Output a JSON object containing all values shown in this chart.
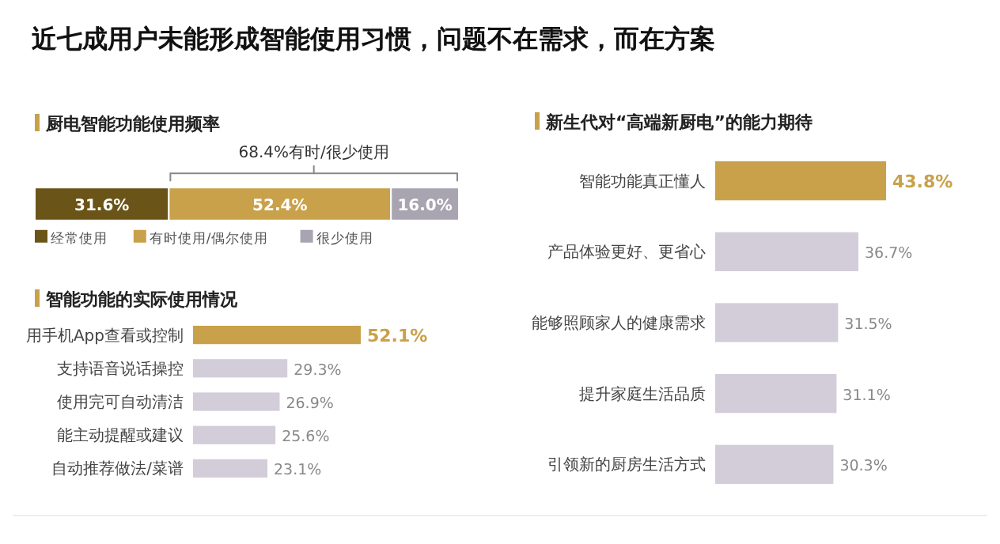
{
  "chart_data": [
    {
      "type": "bar",
      "orientation": "horizontal",
      "stacked": true,
      "title": "近七成用户未能形成智能使用习惯，问题不在需求，而在方案",
      "subtitle": "厨电智能功能使用频率",
      "categories": [
        null
      ],
      "legend": "bottom left",
      "annotations": [
        "68.4%有时/很少使用"
      ],
      "series": [
        {
          "name": "经常使用",
          "color": "#6b5418",
          "values": [
            31.6
          ],
          "value_labels": [
            "31.6%"
          ]
        },
        {
          "name": "有时使用/偶尔使用",
          "color": "#c9a14a",
          "values": [
            52.4
          ],
          "value_labels": [
            "52.4%"
          ]
        },
        {
          "name": "很少使用",
          "color": "#a8a4b0",
          "values": [
            16.0
          ],
          "value_labels": [
            "16.0%"
          ]
        }
      ]
    },
    {
      "type": "bar",
      "orientation": "horizontal",
      "title": "智能功能的实际使用情况",
      "categories": [
        "用手机App查看或控制",
        "支持语音说话操控",
        "使用完可自动清洁",
        "能主动提醒或建议",
        "自动推荐做法/菜谱"
      ],
      "values": [
        52.1,
        29.3,
        26.9,
        25.6,
        23.1
      ],
      "value_labels": [
        "52.1%",
        "29.3%",
        "26.9%",
        "25.6%",
        "23.1%"
      ],
      "colors": [
        "#c9a14a",
        "#d3cdda",
        "#d3cdda",
        "#d3cdda",
        "#d3cdda"
      ]
    },
    {
      "type": "bar",
      "orientation": "horizontal",
      "title": "新生代对“高端新厨电”的能力期待",
      "categories": [
        "智能功能真正懂人",
        "产品体验更好、更省心",
        "能够照顾家人的健康需求",
        "提升家庭生活品质",
        "引领新的厨房生活方式"
      ],
      "values": [
        43.8,
        36.7,
        31.5,
        31.1,
        30.3
      ],
      "value_labels": [
        "43.8%",
        "36.7%",
        "31.5%",
        "31.1%",
        "30.3%"
      ],
      "colors": [
        "#c9a14a",
        "#d3cdda",
        "#d3cdda",
        "#d3cdda",
        "#d3cdda"
      ]
    }
  ]
}
